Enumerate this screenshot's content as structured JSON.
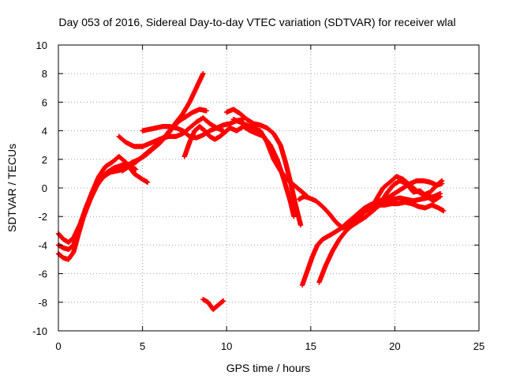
{
  "chart_data": {
    "type": "scatter",
    "title": "Day 053 of 2016, Sidereal Day-to-day VTEC variation (SDTVAR) for receiver wlal",
    "xlabel": "GPS time / hours",
    "ylabel": "SDTVAR / TECUs",
    "xlim": [
      0,
      25
    ],
    "ylim": [
      -10,
      10
    ],
    "xticks": [
      "0",
      "5",
      "10",
      "15",
      "20",
      "25"
    ],
    "yticks": [
      "-10",
      "-8",
      "-6",
      "-4",
      "-2",
      "0",
      "2",
      "4",
      "6",
      "8",
      "10"
    ],
    "grid": true,
    "marker": "plus",
    "color": "#ff0000",
    "series": [
      {
        "x": [
          0.0,
          0.3,
          0.6,
          0.9,
          1.2,
          1.6,
          2.0,
          2.4,
          2.8,
          3.2,
          3.6,
          4.0,
          4.5,
          5.0,
          5.3
        ],
        "y": [
          -4.0,
          -4.2,
          -4.3,
          -4.0,
          -3.0,
          -1.5,
          -0.3,
          0.8,
          1.5,
          1.8,
          2.2,
          1.8,
          1.0,
          0.6,
          0.4
        ]
      },
      {
        "x": [
          0.0,
          0.3,
          0.6,
          0.9,
          1.2,
          1.5,
          1.9,
          2.3,
          2.7,
          3.1,
          3.5,
          3.9
        ],
        "y": [
          -4.6,
          -4.9,
          -5.0,
          -4.5,
          -3.2,
          -2.0,
          -0.8,
          0.2,
          0.8,
          1.1,
          1.2,
          1.3
        ]
      },
      {
        "x": [
          0.0,
          0.3,
          0.6,
          0.9,
          1.3,
          1.7,
          2.1,
          2.5,
          2.9,
          3.3,
          3.8,
          4.2,
          4.6
        ],
        "y": [
          -3.2,
          -3.6,
          -3.8,
          -3.5,
          -2.5,
          -1.2,
          -0.2,
          0.6,
          1.1,
          1.4,
          1.6,
          1.6,
          1.3
        ]
      },
      {
        "x": [
          3.6,
          4.0,
          4.5,
          5.0,
          5.4,
          5.8,
          6.2,
          6.6,
          7.0,
          7.4,
          7.8,
          8.2,
          8.6,
          9.0,
          9.4,
          9.8
        ],
        "y": [
          3.6,
          3.2,
          2.9,
          2.9,
          3.1,
          3.3,
          3.5,
          3.6,
          3.6,
          3.8,
          4.2,
          4.6,
          4.9,
          4.5,
          4.2,
          4.0
        ]
      },
      {
        "x": [
          3.8,
          4.2,
          4.6,
          5.0,
          5.4,
          5.8,
          6.2,
          6.6,
          7.0,
          7.4,
          7.8,
          8.2,
          8.6
        ],
        "y": [
          1.2,
          1.5,
          1.8,
          2.2,
          2.6,
          3.0,
          3.4,
          4.0,
          4.6,
          5.2,
          6.0,
          7.0,
          8.0
        ]
      },
      {
        "x": [
          4.0,
          4.4,
          4.8,
          5.2,
          5.6,
          6.0,
          6.4,
          6.8,
          7.2,
          7.6,
          8.0,
          8.4,
          8.8
        ],
        "y": [
          1.5,
          1.8,
          2.0,
          2.3,
          2.7,
          3.1,
          3.6,
          4.2,
          4.7,
          5.0,
          5.3,
          5.5,
          5.4
        ]
      },
      {
        "x": [
          5.0,
          5.4,
          5.8,
          6.2,
          6.6,
          7.0,
          7.4,
          7.8,
          8.2,
          8.6,
          9.0,
          9.4,
          9.8,
          10.2,
          10.6,
          11.0
        ],
        "y": [
          4.0,
          4.1,
          4.2,
          4.3,
          4.3,
          4.2,
          4.0,
          3.6,
          3.5,
          3.7,
          4.0,
          4.2,
          4.4,
          4.5,
          4.7,
          4.8
        ]
      },
      {
        "x": [
          7.5,
          7.8,
          8.1,
          8.4,
          8.7,
          9.0,
          9.3,
          9.6,
          9.9,
          10.2
        ],
        "y": [
          2.2,
          3.2,
          4.0,
          4.3,
          4.0,
          3.6,
          3.4,
          3.6,
          3.9,
          4.2
        ]
      },
      {
        "x": [
          8.6,
          8.9,
          9.2,
          9.5,
          9.8
        ],
        "y": [
          -7.8,
          -8.0,
          -8.5,
          -8.2,
          -7.9
        ]
      },
      {
        "x": [
          10.0,
          10.4,
          10.8,
          11.2,
          11.6,
          12.0,
          12.4,
          12.8,
          13.2,
          13.5,
          13.8,
          14.1,
          14.4
        ],
        "y": [
          5.3,
          5.5,
          5.2,
          4.8,
          4.5,
          4.4,
          4.2,
          3.8,
          3.0,
          1.8,
          0.4,
          -1.2,
          -2.6
        ]
      },
      {
        "x": [
          10.2,
          10.6,
          11.0,
          11.4,
          11.8,
          12.2,
          12.6,
          13.0,
          13.4,
          13.8,
          14.0
        ],
        "y": [
          4.2,
          4.0,
          4.3,
          4.0,
          3.8,
          3.6,
          3.0,
          2.0,
          0.6,
          -1.0,
          -2.0
        ]
      },
      {
        "x": [
          10.4,
          10.8,
          11.2,
          11.6,
          12.0,
          12.4,
          12.8,
          13.2,
          13.6,
          13.9,
          14.2,
          14.5,
          14.8
        ],
        "y": [
          4.8,
          4.6,
          4.4,
          4.2,
          4.0,
          3.2,
          2.0,
          1.2,
          0.6,
          0.3,
          0.0,
          -0.3,
          -0.6
        ]
      },
      {
        "x": [
          14.3,
          14.6,
          14.9,
          15.3,
          15.7,
          16.1,
          16.5,
          16.9,
          17.3,
          17.7,
          18.1,
          18.5,
          18.9,
          19.3,
          19.7,
          20.1,
          20.5,
          20.9,
          21.3,
          21.7,
          22.1,
          22.5,
          22.8
        ],
        "y": [
          -0.8,
          -0.6,
          -0.7,
          -0.9,
          -1.3,
          -1.8,
          -2.4,
          -2.8,
          -2.6,
          -2.0,
          -1.5,
          -1.2,
          -1.0,
          -0.8,
          -0.6,
          -0.3,
          0.0,
          0.3,
          0.5,
          0.5,
          0.4,
          0.2,
          0.3
        ]
      },
      {
        "x": [
          14.5,
          14.8,
          15.1,
          15.4,
          15.7,
          16.0,
          16.3,
          16.7,
          17.1,
          17.5,
          17.9,
          18.3,
          18.7,
          19.1,
          19.5,
          19.9,
          20.3,
          20.7,
          21.1,
          21.5,
          21.9,
          22.3,
          22.7
        ],
        "y": [
          -6.8,
          -5.8,
          -4.8,
          -4.0,
          -3.6,
          -3.4,
          -3.2,
          -2.9,
          -2.6,
          -2.3,
          -2.0,
          -1.6,
          -1.4,
          -1.2,
          -1.0,
          -0.8,
          -0.7,
          -0.8,
          -0.9,
          -0.8,
          -0.7,
          -0.6,
          -0.4
        ]
      },
      {
        "x": [
          15.5,
          15.9,
          16.3,
          16.7,
          17.1,
          17.5,
          17.9,
          18.3,
          18.7,
          19.1,
          19.5,
          19.9,
          20.3,
          20.7,
          21.1,
          21.5,
          21.9,
          22.3,
          22.7
        ],
        "y": [
          -6.6,
          -5.4,
          -4.4,
          -3.6,
          -3.0,
          -2.6,
          -2.3,
          -2.0,
          -1.6,
          -1.2,
          -0.4,
          0.2,
          0.5,
          0.3,
          -0.3,
          -0.2,
          -0.6,
          -0.9,
          -0.6
        ]
      },
      {
        "x": [
          17.0,
          17.4,
          17.8,
          18.2,
          18.6,
          19.0,
          19.4,
          19.8,
          20.2,
          20.6,
          21.0,
          21.4,
          21.8,
          22.2,
          22.6,
          22.9
        ],
        "y": [
          -2.6,
          -2.2,
          -1.8,
          -1.4,
          -1.2,
          -1.2,
          -1.2,
          -1.1,
          -1.1,
          -1.0,
          -1.1,
          -1.3,
          -1.4,
          -1.2,
          -1.4,
          -1.6
        ]
      },
      {
        "x": [
          18.5,
          18.9,
          19.3,
          19.7,
          20.1,
          20.5,
          20.9,
          21.3,
          21.7,
          22.1,
          22.5,
          22.8
        ],
        "y": [
          -1.6,
          -0.8,
          0.0,
          0.4,
          0.8,
          0.6,
          0.2,
          -0.2,
          -0.5,
          -0.3,
          0.2,
          0.5
        ]
      }
    ]
  }
}
